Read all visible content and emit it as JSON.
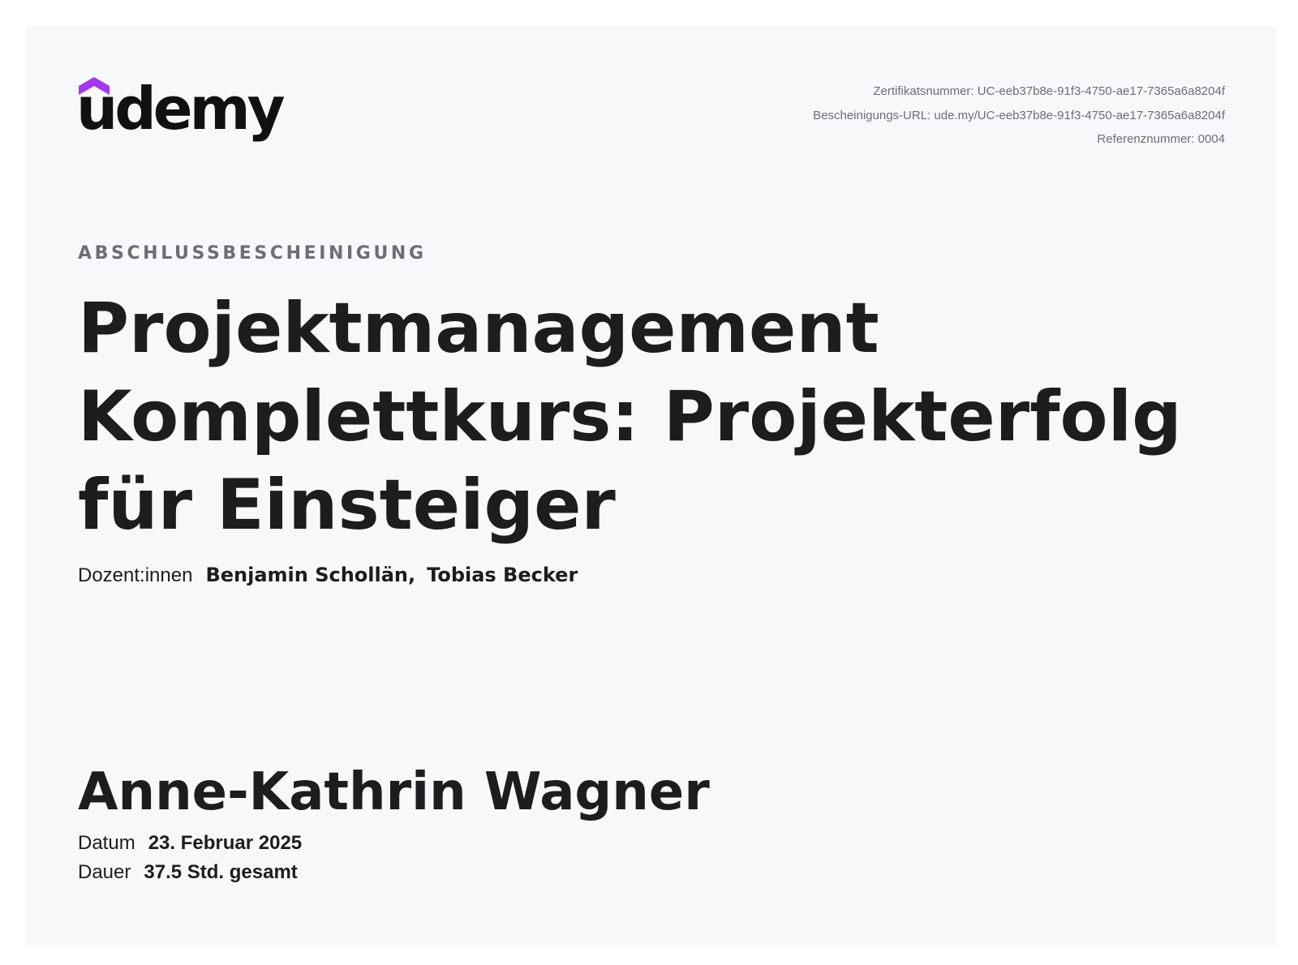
{
  "brand": {
    "logo_text": "udemy",
    "accent_color": "#a435f0"
  },
  "certificate_meta": {
    "certificate_number": "Zertifikatsnummer: UC-eeb37b8e-91f3-4750-ae17-7365a6a8204f",
    "certificate_url": "Bescheinigungs-URL: ude.my/UC-eeb37b8e-91f3-4750-ae17-7365a6a8204f",
    "reference_number": "Referenznummer: 0004"
  },
  "heading": {
    "eyebrow": "ABSCHLUSSBESCHEINIGUNG",
    "course_title": "Projektmanagement Komplettkurs: Projekterfolg für Einsteiger"
  },
  "instructors": {
    "label": "Dozent:innen",
    "names": [
      "Benjamin Schollän",
      "Tobias Becker"
    ],
    "separator": ","
  },
  "recipient": {
    "name": "Anne-Kathrin Wagner"
  },
  "details": {
    "date_label": "Datum",
    "date_value": "23. Februar 2025",
    "length_label": "Dauer",
    "length_value": "37.5 Std. gesamt"
  }
}
